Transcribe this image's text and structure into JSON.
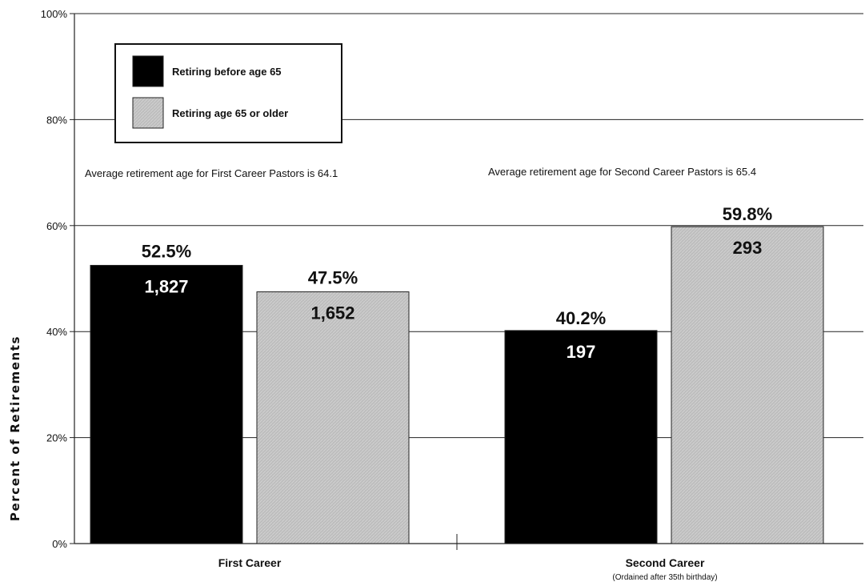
{
  "chart_data": {
    "type": "bar",
    "title": "",
    "xlabel": "",
    "ylabel": "Percent of Retirements",
    "ylim": [
      0,
      100
    ],
    "yticks": [
      0,
      20,
      40,
      60,
      80,
      100
    ],
    "ytick_labels": [
      "0%",
      "20%",
      "40%",
      "60%",
      "80%",
      "100%"
    ],
    "grid": true,
    "legend_position": "top-left",
    "categories": [
      {
        "label": "First Career",
        "sublabel": ""
      },
      {
        "label": "Second Career",
        "sublabel": "(Ordained after 35th birthday)"
      }
    ],
    "series": [
      {
        "name": "Retiring before age 65",
        "color": "#000000",
        "values": [
          52.5,
          40.2
        ],
        "value_labels": [
          "52.5%",
          "40.2%"
        ],
        "counts": [
          "1,827",
          "197"
        ]
      },
      {
        "name": "Retiring age 65 or older",
        "color": "#bdbdbd",
        "values": [
          47.5,
          59.8
        ],
        "value_labels": [
          "47.5%",
          "59.8%"
        ],
        "counts": [
          "1,652",
          "293"
        ]
      }
    ],
    "annotations": [
      "Average retirement age for First Career Pastors is 64.1",
      "Average retirement age for Second Career Pastors is 65.4"
    ]
  }
}
